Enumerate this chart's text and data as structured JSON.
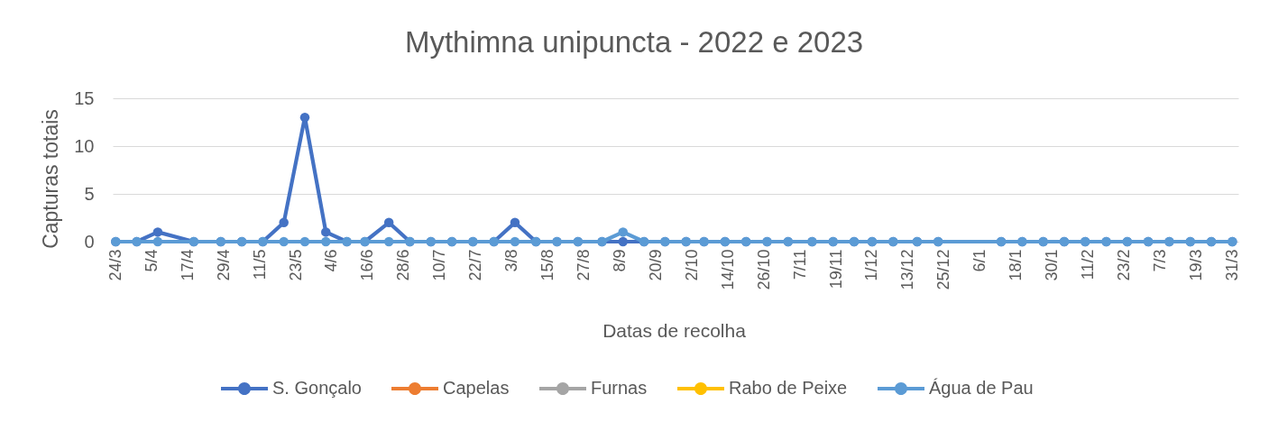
{
  "chart_data": {
    "type": "line",
    "title": "Mythimna unipuncta - 2022 e 2023",
    "xlabel": "Datas de recolha",
    "ylabel": "Capturas totais",
    "x": [
      "2022-03-24",
      "2022-03-31",
      "2022-04-07",
      "2022-04-19",
      "2022-04-28",
      "2022-05-05",
      "2022-05-12",
      "2022-05-19",
      "2022-05-26",
      "2022-06-02",
      "2022-06-09",
      "2022-06-15",
      "2022-06-23",
      "2022-06-30",
      "2022-07-07",
      "2022-07-14",
      "2022-07-21",
      "2022-07-28",
      "2022-08-04",
      "2022-08-11",
      "2022-08-18",
      "2022-08-25",
      "2022-09-02",
      "2022-09-09",
      "2022-09-16",
      "2022-09-23",
      "2022-09-30",
      "2022-10-06",
      "2022-10-13",
      "2022-10-20",
      "2022-10-27",
      "2022-11-03",
      "2022-11-11",
      "2022-11-18",
      "2022-11-25",
      "2022-12-01",
      "2022-12-08",
      "2022-12-16",
      "2022-12-23",
      "2023-01-13",
      "2023-01-20",
      "2023-01-27",
      "2023-02-03",
      "2023-02-10",
      "2023-02-17",
      "2023-02-24",
      "2023-03-03",
      "2023-03-10",
      "2023-03-17",
      "2023-03-24",
      "2023-03-31"
    ],
    "series": [
      {
        "name": "S. Gonçalo",
        "color": "#4472c4",
        "values": [
          0,
          0,
          1,
          0,
          0,
          0,
          0,
          2,
          13,
          1,
          0,
          0,
          2,
          0,
          0,
          0,
          0,
          0,
          2,
          0,
          0,
          0,
          0,
          0,
          0,
          0,
          0,
          0,
          0,
          0,
          0,
          0,
          0,
          0,
          0,
          0,
          0,
          0,
          0,
          0,
          0,
          0,
          0,
          0,
          0,
          0,
          0,
          0,
          0,
          0,
          0
        ]
      },
      {
        "name": "Capelas",
        "color": "#ed7d31",
        "values": [
          null,
          null,
          null,
          null,
          null,
          null,
          null,
          null,
          null,
          null,
          null,
          null,
          null,
          null,
          null,
          null,
          null,
          null,
          null,
          null,
          null,
          null,
          null,
          null,
          null,
          null,
          null,
          null,
          null,
          null,
          null,
          null,
          null,
          null,
          null,
          null,
          null,
          null,
          null,
          null,
          null,
          null,
          null,
          null,
          null,
          null,
          null,
          null,
          null,
          null,
          null
        ]
      },
      {
        "name": "Furnas",
        "color": "#a5a5a5",
        "values": [
          null,
          null,
          null,
          null,
          null,
          null,
          null,
          null,
          null,
          null,
          null,
          null,
          null,
          null,
          null,
          null,
          null,
          null,
          null,
          null,
          null,
          null,
          null,
          null,
          null,
          null,
          null,
          null,
          null,
          null,
          null,
          null,
          null,
          null,
          null,
          null,
          null,
          null,
          null,
          null,
          null,
          null,
          null,
          null,
          null,
          null,
          null,
          null,
          null,
          null,
          null
        ]
      },
      {
        "name": "Rabo de Peixe",
        "color": "#ffc000",
        "values": [
          null,
          null,
          null,
          null,
          null,
          null,
          null,
          null,
          null,
          null,
          null,
          null,
          null,
          null,
          null,
          null,
          null,
          null,
          null,
          null,
          null,
          null,
          null,
          null,
          null,
          null,
          null,
          null,
          null,
          null,
          null,
          null,
          null,
          null,
          null,
          null,
          null,
          null,
          null,
          null,
          null,
          null,
          null,
          null,
          null,
          null,
          null,
          null,
          null,
          null,
          null
        ]
      },
      {
        "name": "Água de Pau",
        "color": "#5b9bd5",
        "values": [
          0,
          0,
          0,
          0,
          0,
          0,
          0,
          0,
          0,
          0,
          0,
          0,
          0,
          0,
          0,
          0,
          0,
          0,
          0,
          0,
          0,
          0,
          0,
          1,
          0,
          0,
          0,
          0,
          0,
          0,
          0,
          0,
          0,
          0,
          0,
          0,
          0,
          0,
          0,
          0,
          0,
          0,
          0,
          0,
          0,
          0,
          0,
          0,
          0,
          0,
          0
        ]
      }
    ],
    "xlim": [
      "2022-03-23",
      "2023-04-02"
    ],
    "xticks": [
      {
        "value": "2022-03-24",
        "label": "24/3"
      },
      {
        "value": "2022-04-05",
        "label": "5/4"
      },
      {
        "value": "2022-04-17",
        "label": "17/4"
      },
      {
        "value": "2022-04-29",
        "label": "29/4"
      },
      {
        "value": "2022-05-11",
        "label": "11/5"
      },
      {
        "value": "2022-05-23",
        "label": "23/5"
      },
      {
        "value": "2022-06-04",
        "label": "4/6"
      },
      {
        "value": "2022-06-16",
        "label": "16/6"
      },
      {
        "value": "2022-06-28",
        "label": "28/6"
      },
      {
        "value": "2022-07-10",
        "label": "10/7"
      },
      {
        "value": "2022-07-22",
        "label": "22/7"
      },
      {
        "value": "2022-08-03",
        "label": "3/8"
      },
      {
        "value": "2022-08-15",
        "label": "15/8"
      },
      {
        "value": "2022-08-27",
        "label": "27/8"
      },
      {
        "value": "2022-09-08",
        "label": "8/9"
      },
      {
        "value": "2022-09-20",
        "label": "20/9"
      },
      {
        "value": "2022-10-02",
        "label": "2/10"
      },
      {
        "value": "2022-10-14",
        "label": "14/10"
      },
      {
        "value": "2022-10-26",
        "label": "26/10"
      },
      {
        "value": "2022-11-07",
        "label": "7/11"
      },
      {
        "value": "2022-11-19",
        "label": "19/11"
      },
      {
        "value": "2022-12-01",
        "label": "1/12"
      },
      {
        "value": "2022-12-13",
        "label": "13/12"
      },
      {
        "value": "2022-12-25",
        "label": "25/12"
      },
      {
        "value": "2023-01-06",
        "label": "6/1"
      },
      {
        "value": "2023-01-18",
        "label": "18/1"
      },
      {
        "value": "2023-01-30",
        "label": "30/1"
      },
      {
        "value": "2023-02-11",
        "label": "11/2"
      },
      {
        "value": "2023-02-23",
        "label": "23/2"
      },
      {
        "value": "2023-03-07",
        "label": "7/3"
      },
      {
        "value": "2023-03-19",
        "label": "19/3"
      },
      {
        "value": "2023-03-31",
        "label": "31/3"
      }
    ],
    "ylim": [
      0,
      15
    ],
    "yticks": [
      0,
      5,
      10,
      15
    ],
    "grid": "y",
    "legend": "bottom",
    "marker": "circle",
    "line_style": "solid"
  }
}
